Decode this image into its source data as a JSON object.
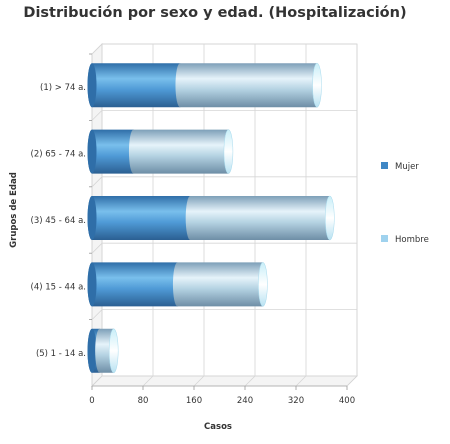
{
  "chart_data": {
    "type": "bar",
    "orientation": "horizontal",
    "stacked": true,
    "style": "3d-cylinder",
    "title": "Distribución por sexo y edad. (Hospitalización)",
    "xlabel": "Casos",
    "ylabel": "Grupos de Edad",
    "categories": [
      "(1) > 74 a.",
      "(2) 65 - 74 a.",
      "(3) 45 - 64 a.",
      "(4) 15 - 44 a.",
      "(5) 1 - 14 a."
    ],
    "series": [
      {
        "name": "Mujer",
        "color": "#3f87c5",
        "values": [
          138,
          65,
          154,
          134,
          12
        ]
      },
      {
        "name": "Hombre",
        "color": "#9fd2ee",
        "values": [
          215,
          149,
          219,
          134,
          22
        ]
      }
    ],
    "xlim": [
      0,
      400
    ],
    "xticks": [
      "0",
      "80",
      "160",
      "240",
      "320",
      "400"
    ],
    "grid": true,
    "legend_position": "right"
  }
}
